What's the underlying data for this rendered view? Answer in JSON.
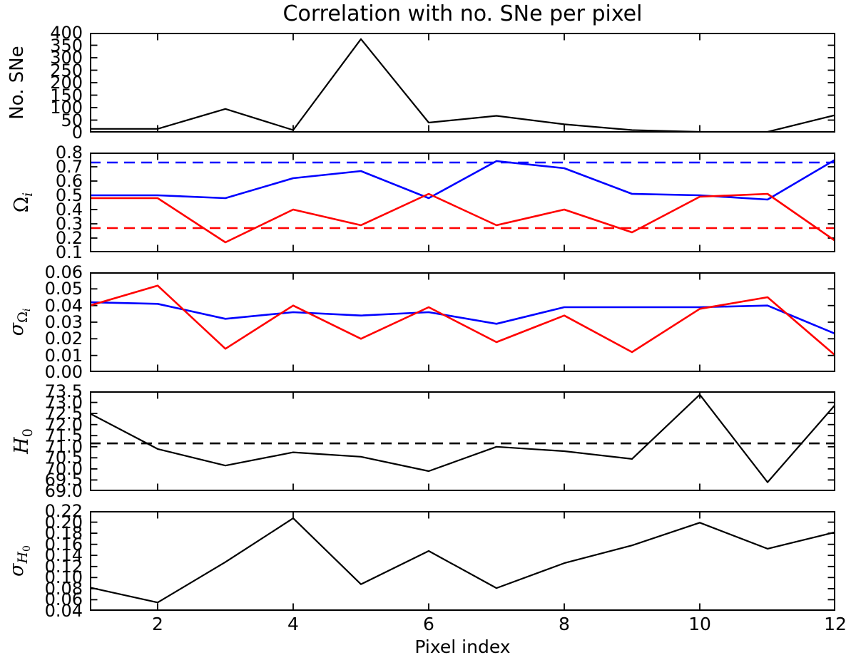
{
  "title": "Correlation with no. SNe per pixel",
  "xlabel": "Pixel index",
  "x": [
    1,
    2,
    3,
    4,
    5,
    6,
    7,
    8,
    9,
    10,
    11,
    12
  ],
  "x_ticks": [
    2,
    4,
    6,
    8,
    10,
    12
  ],
  "x_tick_labels": [
    "2",
    "4",
    "6",
    "8",
    "10",
    "12"
  ],
  "colors": {
    "blue": "#0000ff",
    "red": "#ff0000",
    "black": "#000000"
  },
  "chart_data": [
    {
      "type": "line",
      "name": "no-sne",
      "ylabel_text": "No. SNe",
      "ylabel_parts": [
        {
          "t": "No. SNe",
          "sans": true
        }
      ],
      "ylim": [
        0,
        400
      ],
      "yticks": [
        0,
        50,
        100,
        150,
        200,
        250,
        300,
        350,
        400
      ],
      "ytick_labels": [
        "0",
        "50",
        "100",
        "150",
        "200",
        "250",
        "300",
        "350",
        "400"
      ],
      "series": [
        {
          "name": "sne-per-pixel",
          "color": "black",
          "style": "solid",
          "values": [
            15,
            15,
            95,
            10,
            375,
            40,
            67,
            33,
            10,
            3,
            3,
            70
          ]
        }
      ]
    },
    {
      "type": "line",
      "name": "omega-i",
      "ylabel_text": "Omega_i",
      "ylabel_parts": [
        {
          "t": "Ω"
        },
        {
          "t": "i",
          "sub": 1,
          "it": true
        }
      ],
      "ylim": [
        0.1,
        0.8
      ],
      "yticks": [
        0.1,
        0.2,
        0.3,
        0.4,
        0.5,
        0.6,
        0.7,
        0.8
      ],
      "ytick_labels": [
        "0.1",
        "0.2",
        "0.3",
        "0.4",
        "0.5",
        "0.6",
        "0.7",
        "0.8"
      ],
      "series": [
        {
          "name": "omega-lambda",
          "color": "blue",
          "style": "solid",
          "values": [
            0.5,
            0.5,
            0.48,
            0.62,
            0.67,
            0.48,
            0.74,
            0.69,
            0.51,
            0.5,
            0.47,
            0.75
          ]
        },
        {
          "name": "omega-m",
          "color": "red",
          "style": "solid",
          "values": [
            0.48,
            0.48,
            0.17,
            0.4,
            0.29,
            0.51,
            0.29,
            0.4,
            0.24,
            0.49,
            0.51,
            0.18
          ]
        },
        {
          "name": "omega-lambda-reference",
          "color": "blue",
          "style": "dashed",
          "hline": 0.73
        },
        {
          "name": "omega-m-reference",
          "color": "red",
          "style": "dashed",
          "hline": 0.27
        }
      ]
    },
    {
      "type": "line",
      "name": "sigma-omega-i",
      "ylabel_text": "sigma_Omega_i",
      "ylabel_parts": [
        {
          "t": "σ",
          "it": true
        },
        {
          "t": "Ω",
          "sub": 1
        },
        {
          "t": "i",
          "sub": 2,
          "it": true
        }
      ],
      "ylim": [
        0.0,
        0.06
      ],
      "yticks": [
        0.0,
        0.01,
        0.02,
        0.03,
        0.04,
        0.05,
        0.06
      ],
      "ytick_labels": [
        "0.00",
        "0.01",
        "0.02",
        "0.03",
        "0.04",
        "0.05",
        "0.06"
      ],
      "series": [
        {
          "name": "sigma-omega-lambda",
          "color": "blue",
          "style": "solid",
          "values": [
            0.042,
            0.041,
            0.032,
            0.036,
            0.034,
            0.036,
            0.029,
            0.039,
            0.039,
            0.039,
            0.04,
            0.023
          ]
        },
        {
          "name": "sigma-omega-m",
          "color": "red",
          "style": "solid",
          "values": [
            0.04,
            0.052,
            0.014,
            0.04,
            0.02,
            0.039,
            0.018,
            0.034,
            0.012,
            0.038,
            0.045,
            0.01
          ]
        }
      ]
    },
    {
      "type": "line",
      "name": "h0",
      "ylabel_text": "H_0",
      "ylabel_parts": [
        {
          "t": "H",
          "it": true
        },
        {
          "t": "0",
          "sub": 1
        }
      ],
      "ylim": [
        69.0,
        73.5
      ],
      "yticks": [
        69.0,
        69.5,
        70.0,
        70.5,
        71.0,
        71.5,
        72.0,
        72.5,
        73.0,
        73.5
      ],
      "ytick_labels": [
        "69.0",
        "69.5",
        "70.0",
        "70.5",
        "71.0",
        "71.5",
        "72.0",
        "72.5",
        "73.0",
        "73.5"
      ],
      "series": [
        {
          "name": "h0-per-pixel",
          "color": "black",
          "style": "solid",
          "values": [
            72.5,
            70.9,
            70.15,
            70.75,
            70.55,
            69.9,
            71.0,
            70.8,
            70.45,
            73.35,
            69.4,
            72.9
          ]
        },
        {
          "name": "h0-reference",
          "color": "black",
          "style": "dashed",
          "hline": 71.15
        }
      ]
    },
    {
      "type": "line",
      "name": "sigma-h0",
      "ylabel_text": "sigma_H_0",
      "ylabel_parts": [
        {
          "t": "σ",
          "it": true
        },
        {
          "t": "H",
          "sub": 1,
          "it": true
        },
        {
          "t": "0",
          "sub": 2
        }
      ],
      "ylim": [
        0.04,
        0.22
      ],
      "yticks": [
        0.04,
        0.06,
        0.08,
        0.1,
        0.12,
        0.14,
        0.16,
        0.18,
        0.2,
        0.22
      ],
      "ytick_labels": [
        "0.04",
        "0.06",
        "0.08",
        "0.10",
        "0.12",
        "0.14",
        "0.16",
        "0.18",
        "0.20",
        "0.22"
      ],
      "series": [
        {
          "name": "sigma-h0-per-pixel",
          "color": "black",
          "style": "solid",
          "values": [
            0.082,
            0.055,
            0.128,
            0.207,
            0.088,
            0.148,
            0.081,
            0.126,
            0.158,
            0.199,
            0.152,
            0.182
          ]
        }
      ]
    }
  ]
}
